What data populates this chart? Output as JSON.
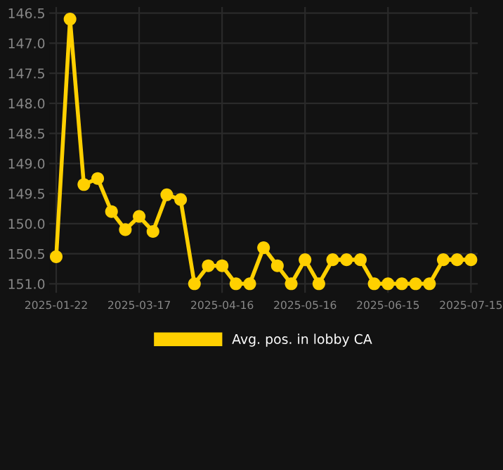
{
  "chart_data": {
    "type": "line",
    "categories": [
      "2025-01-22",
      null,
      null,
      null,
      null,
      null,
      "2025-03-17",
      null,
      null,
      null,
      null,
      null,
      "2025-04-16",
      null,
      null,
      null,
      null,
      null,
      "2025-05-16",
      null,
      null,
      null,
      null,
      null,
      "2025-06-15",
      null,
      null,
      null,
      null,
      null,
      "2025-07-15"
    ],
    "series": [
      {
        "name": "Avg. pos. in lobby CA",
        "color": "#ffd000",
        "values": [
          150.55,
          146.6,
          149.35,
          149.25,
          149.8,
          150.1,
          149.88,
          150.13,
          149.52,
          149.6,
          151.0,
          150.7,
          150.7,
          151.0,
          151.0,
          150.4,
          150.7,
          151.0,
          150.6,
          151.0,
          150.6,
          150.6,
          150.6,
          151.0,
          151.0,
          151.0,
          151.0,
          151.0,
          150.6,
          150.6,
          150.6
        ]
      }
    ],
    "ylim": [
      151.15,
      146.4
    ],
    "yticks": [
      {
        "value": 146.5,
        "label": "146.5"
      },
      {
        "value": 147.0,
        "label": "147.0"
      },
      {
        "value": 147.5,
        "label": "147.5"
      },
      {
        "value": 148.0,
        "label": "148.0"
      },
      {
        "value": 148.5,
        "label": "148.5"
      },
      {
        "value": 149.0,
        "label": "149.0"
      },
      {
        "value": 149.5,
        "label": "149.5"
      },
      {
        "value": 150.0,
        "label": "150.0"
      },
      {
        "value": 150.5,
        "label": "150.5"
      },
      {
        "value": 151.0,
        "label": "151.0"
      }
    ],
    "grid": true,
    "legend": "bottom",
    "marker": "circle",
    "line_style": "solid"
  }
}
